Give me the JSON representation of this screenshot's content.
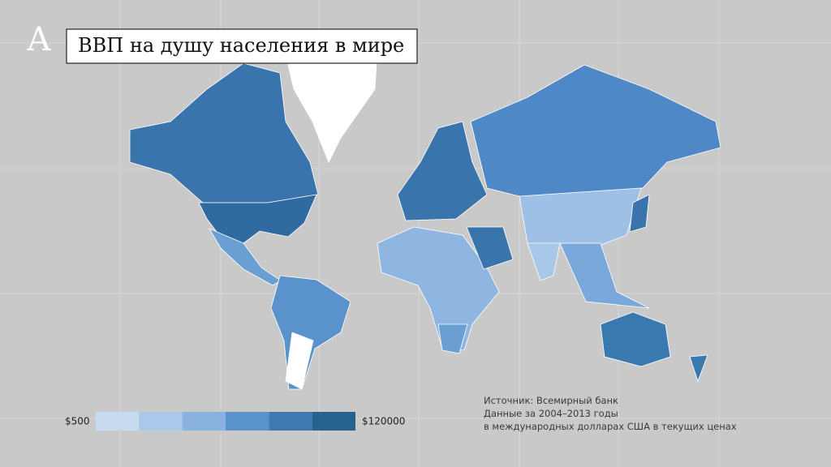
{
  "header": {
    "title": "ВВП на душу населения в мире"
  },
  "legend": {
    "min_label": "$500",
    "max_label": "$120000",
    "colors": [
      "#c6daf0",
      "#aac8ea",
      "#8ab2e0",
      "#5a92cc",
      "#3f78b2",
      "#27628f"
    ]
  },
  "source": {
    "lines": [
      "Источник: Всемирный банк",
      "Данные за 2004–2013 годы",
      "в международных долларах США в текущих ценах"
    ]
  }
}
